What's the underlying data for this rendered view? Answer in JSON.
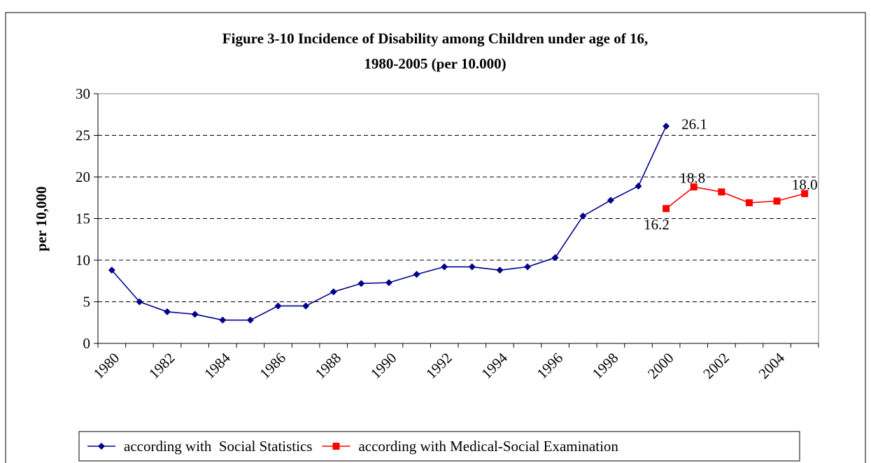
{
  "chart_data": {
    "type": "line",
    "title": "Figure 3-10 Incidence of Disability among Children under age of 16,",
    "subtitle": "1980-2005 (per 10.000)",
    "xlabel": "",
    "ylabel": "per 10,000",
    "ylim": [
      0,
      30
    ],
    "yticks": [
      0,
      5,
      10,
      15,
      20,
      25,
      30
    ],
    "x": [
      1980,
      1981,
      1982,
      1983,
      1984,
      1985,
      1986,
      1987,
      1988,
      1989,
      1990,
      1991,
      1992,
      1993,
      1994,
      1995,
      1996,
      1997,
      1998,
      1999,
      2000,
      2001,
      2002,
      2003,
      2004,
      2005
    ],
    "xtick_labels": [
      "1980",
      "1982",
      "1984",
      "1986",
      "1988",
      "1990",
      "1992",
      "1994",
      "1996",
      "1998",
      "2000",
      "2002",
      "2004"
    ],
    "grid": "horizontal dashed",
    "legend_position": "bottom",
    "series": [
      {
        "name": "according with  Social Statistics",
        "color": "#00008B",
        "marker": "diamond",
        "values": [
          8.8,
          5.0,
          3.8,
          3.5,
          2.8,
          2.8,
          4.5,
          4.5,
          6.2,
          7.2,
          7.3,
          8.3,
          9.2,
          9.2,
          8.8,
          9.2,
          10.3,
          15.3,
          17.2,
          18.9,
          26.1,
          null,
          null,
          null,
          null,
          null
        ]
      },
      {
        "name": "according with Medical-Social Examination",
        "color": "#FF0000",
        "marker": "square",
        "values": [
          null,
          null,
          null,
          null,
          null,
          null,
          null,
          null,
          null,
          null,
          null,
          null,
          null,
          null,
          null,
          null,
          null,
          null,
          null,
          null,
          16.2,
          18.8,
          18.2,
          16.9,
          17.1,
          18.0
        ]
      }
    ],
    "annotations": [
      {
        "text": "26.1",
        "x": 2000,
        "y": 26.1,
        "series": 0
      },
      {
        "text": "16.2",
        "x": 2000,
        "y": 16.2,
        "series": 1
      },
      {
        "text": "18.8",
        "x": 2001,
        "y": 18.8,
        "series": 1
      },
      {
        "text": "18.0",
        "x": 2005,
        "y": 18.0,
        "series": 1
      }
    ]
  }
}
